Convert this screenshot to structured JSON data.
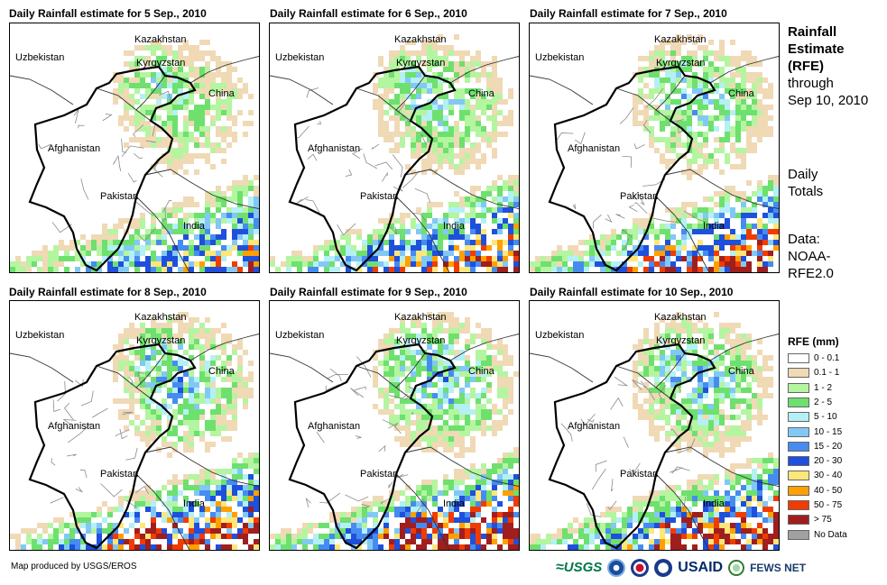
{
  "panels": [
    {
      "title": "Daily Rainfall estimate for 5 Sep., 2010",
      "intensity": 0.7
    },
    {
      "title": "Daily Rainfall estimate for 6 Sep., 2010",
      "intensity": 0.9
    },
    {
      "title": "Daily Rainfall estimate for 7 Sep., 2010",
      "intensity": 1.0
    },
    {
      "title": "Daily Rainfall estimate for 8 Sep., 2010",
      "intensity": 1.1
    },
    {
      "title": "Daily Rainfall estimate for 9 Sep., 2010",
      "intensity": 1.2
    },
    {
      "title": "Daily Rainfall estimate for 10 Sep., 2010",
      "intensity": 1.1
    }
  ],
  "country_labels": {
    "kazakhstan": "Kazakhstan",
    "uzbekistan": "Uzbekistan",
    "kyrgyzstan": "Kyrgyzstan",
    "china": "China",
    "afghanistan": "Afghanistan",
    "pakistan": "Pakistan",
    "india": "India"
  },
  "sidebar": {
    "title_line1": "Rainfall",
    "title_line2": "Estimate",
    "title_line3": "(RFE)",
    "title_line4": "through",
    "title_line5": "Sep 10, 2010",
    "daily_line1": "Daily",
    "daily_line2": "Totals",
    "data_line1": "Data:",
    "data_line2": "NOAA-",
    "data_line3": "RFE2.0"
  },
  "legend": {
    "title": "RFE (mm)",
    "items": [
      {
        "label": "0 - 0.1",
        "color": "#ffffff"
      },
      {
        "label": "0.1 - 1",
        "color": "#f0d9b5"
      },
      {
        "label": "1 - 2",
        "color": "#b4f5a0"
      },
      {
        "label": "2 - 5",
        "color": "#6ee06e"
      },
      {
        "label": "5 - 10",
        "color": "#b4f0f5"
      },
      {
        "label": "10 - 15",
        "color": "#82c8f5"
      },
      {
        "label": "15 - 20",
        "color": "#468cf0"
      },
      {
        "label": "20 - 30",
        "color": "#1e50dc"
      },
      {
        "label": "30 - 40",
        "color": "#ffe678"
      },
      {
        "label": "40 - 50",
        "color": "#ffa000"
      },
      {
        "label": "50 - 75",
        "color": "#f03c00"
      },
      {
        "label": "> 75",
        "color": "#a01e1e"
      },
      {
        "label": "No Data",
        "color": "#a0a0a0"
      }
    ]
  },
  "footer": {
    "credit": "Map produced by USGS/EROS",
    "logo_usgs": "USGS",
    "logo_usaid": "USAID",
    "logo_fews": "FEWS NET"
  }
}
